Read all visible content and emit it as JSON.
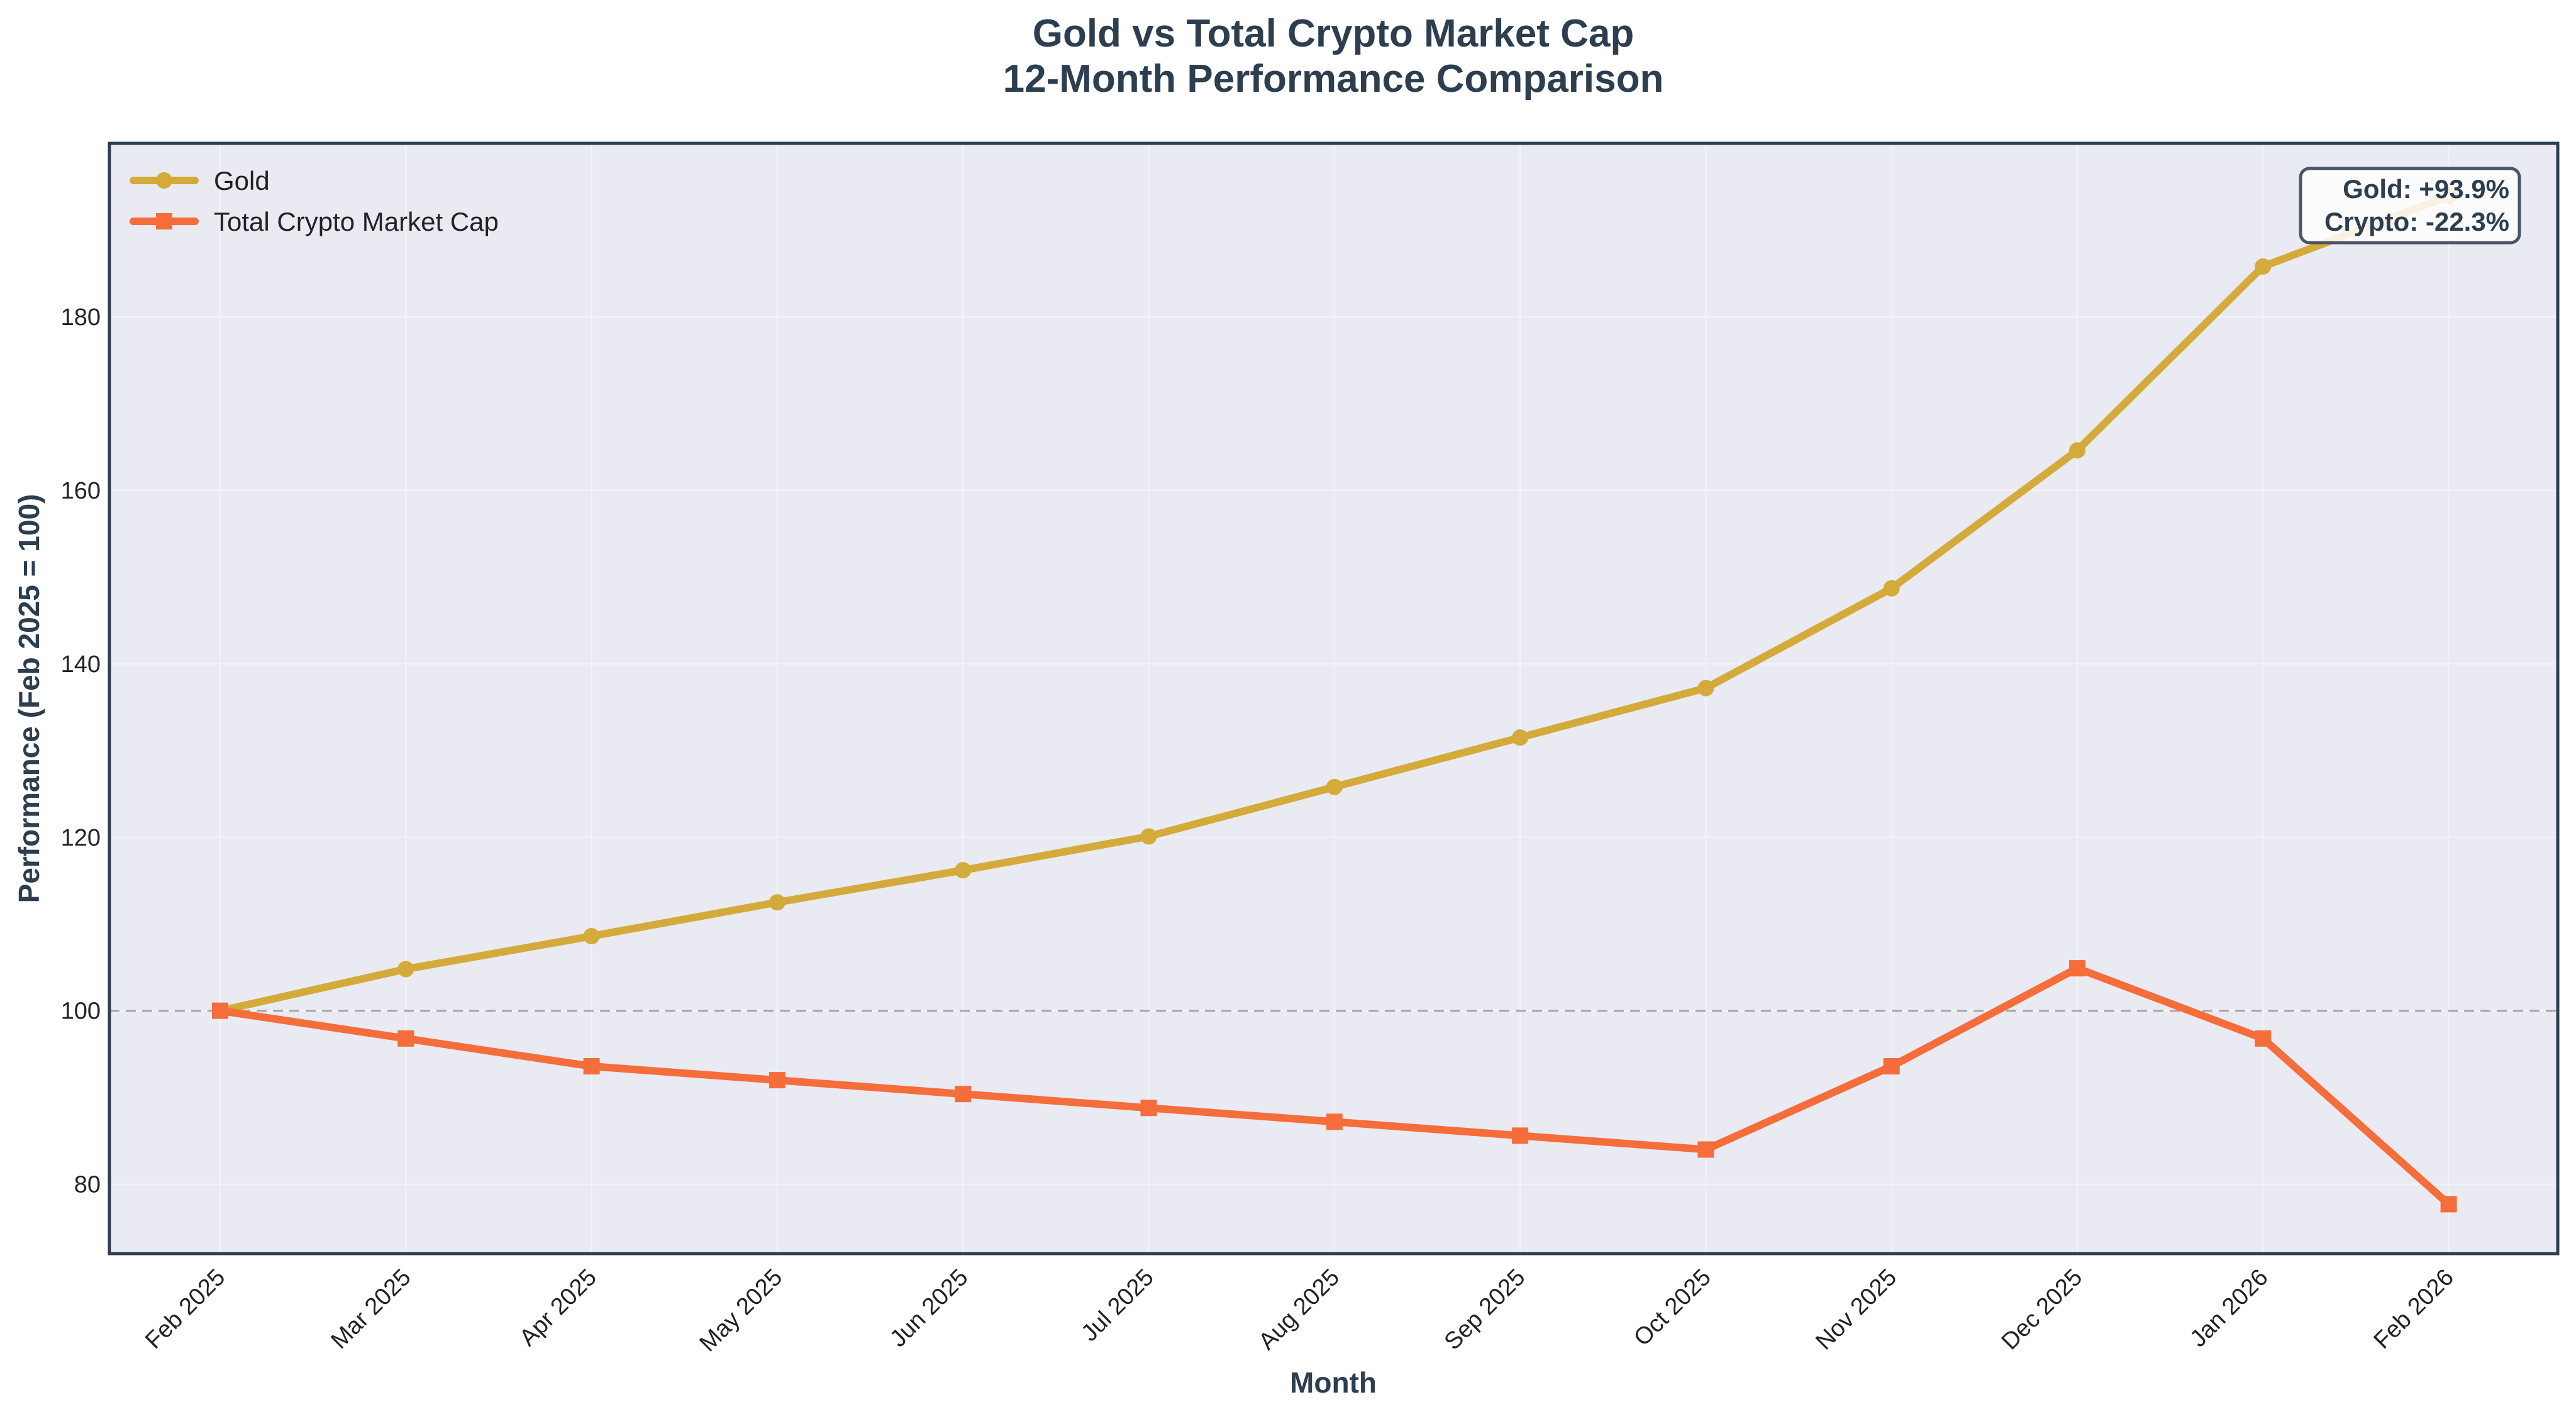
{
  "chart_data": {
    "type": "line",
    "title": "Gold vs Total Crypto Market Cap",
    "subtitle": "12-Month Performance Comparison",
    "xlabel": "Month",
    "ylabel": "Performance (Feb 2025 = 100)",
    "categories": [
      "Feb 2025",
      "Mar 2025",
      "Apr 2025",
      "May 2025",
      "Jun 2025",
      "Jul 2025",
      "Aug 2025",
      "Sep 2025",
      "Oct 2025",
      "Nov 2025",
      "Dec 2025",
      "Jan 2026",
      "Feb 2026"
    ],
    "ylim": [
      72,
      200
    ],
    "yticks": [
      80,
      100,
      120,
      140,
      160,
      180
    ],
    "baseline": 100,
    "grid": true,
    "legend_position": "top-left",
    "series": [
      {
        "name": "Gold",
        "color": "#d4aa3a",
        "marker": "circle",
        "values": [
          100,
          104.8,
          108.6,
          112.5,
          116.2,
          120.1,
          125.8,
          131.5,
          137.2,
          148.7,
          164.6,
          185.8,
          193.9
        ]
      },
      {
        "name": "Total Crypto Market Cap",
        "color": "#f46d3a",
        "marker": "square",
        "values": [
          100,
          96.8,
          93.6,
          92.0,
          90.4,
          88.8,
          87.2,
          85.6,
          84.0,
          93.6,
          104.9,
          96.8,
          77.7
        ]
      }
    ],
    "annotation": {
      "lines": [
        "Gold: +93.9%",
        "Crypto: -22.3%"
      ],
      "position": "top-right"
    }
  }
}
